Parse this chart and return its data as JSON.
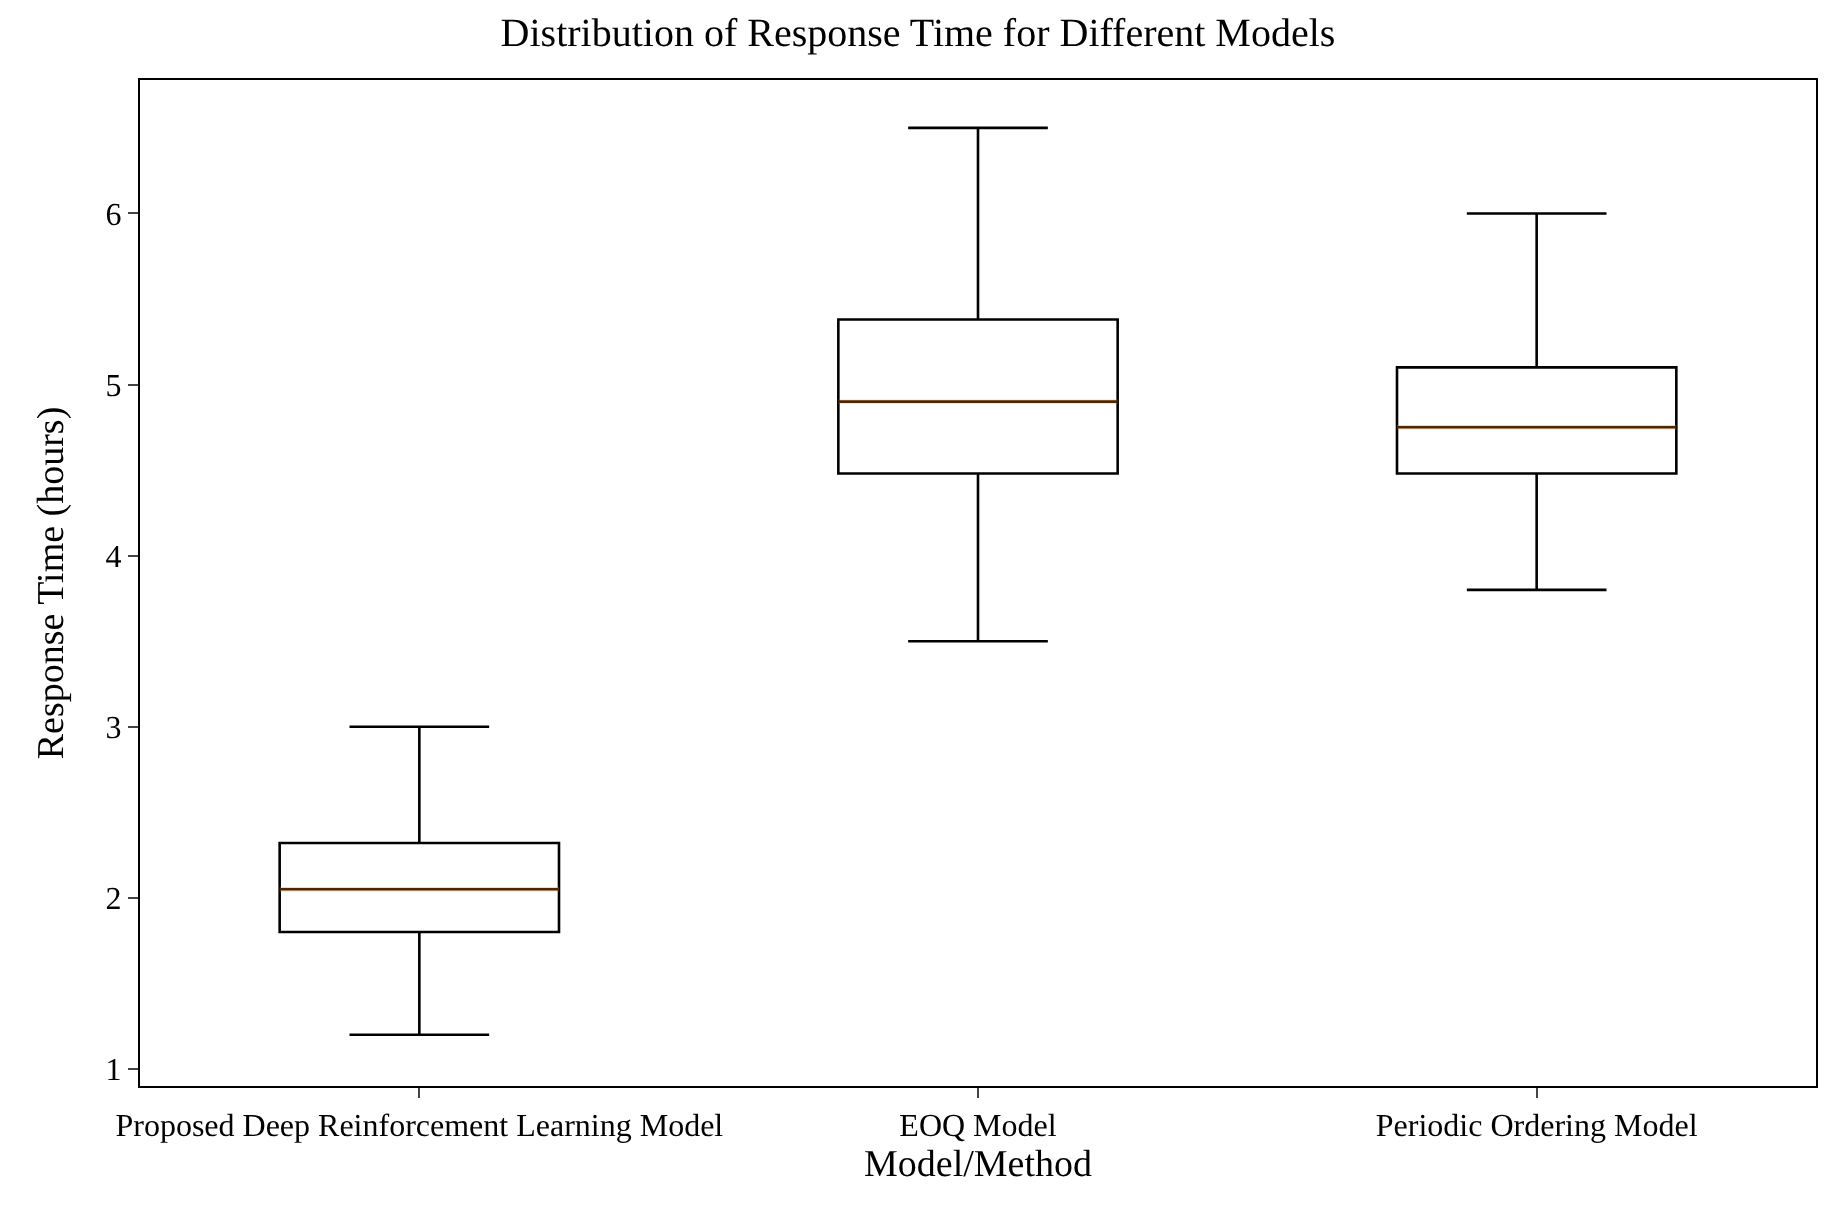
{
  "chart_data": {
    "type": "box",
    "title": "Distribution of Response Time for Different Models",
    "xlabel": "Model/Method",
    "ylabel": "Response Time (hours)",
    "categories": [
      "Proposed Deep Reinforcement Learning Model",
      "EOQ Model",
      "Periodic Ordering Model"
    ],
    "boxes": [
      {
        "low": 1.2,
        "q1": 1.8,
        "median": 2.05,
        "q3": 2.32,
        "high": 3.0
      },
      {
        "low": 3.5,
        "q1": 4.48,
        "median": 4.9,
        "q3": 5.38,
        "high": 6.5
      },
      {
        "low": 3.8,
        "q1": 4.48,
        "median": 4.75,
        "q3": 5.1,
        "high": 6.0
      }
    ],
    "color": "#000000",
    "ylim": [
      0.9,
      6.78
    ],
    "yticks": [
      1,
      2,
      3,
      4,
      5,
      6
    ],
    "grid": false,
    "legend": false
  }
}
